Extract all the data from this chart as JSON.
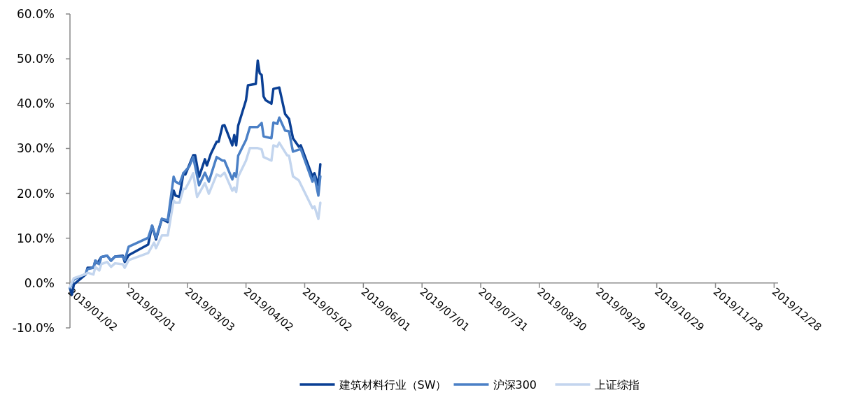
{
  "chart_data": {
    "type": "line",
    "legend": "bottom",
    "grid": false,
    "marker": "none",
    "line_style": "solid",
    "xlim": [
      "2019-01-02",
      "2019-12-30"
    ],
    "xticks": [
      {
        "value": "2019-01-02",
        "label": "2019/01/02"
      },
      {
        "value": "2019-02-01",
        "label": "2019/02/01"
      },
      {
        "value": "2019-03-03",
        "label": "2019/03/03"
      },
      {
        "value": "2019-04-02",
        "label": "2019/04/02"
      },
      {
        "value": "2019-05-02",
        "label": "2019/05/02"
      },
      {
        "value": "2019-06-01",
        "label": "2019/06/01"
      },
      {
        "value": "2019-07-01",
        "label": "2019/07/01"
      },
      {
        "value": "2019-07-31",
        "label": "2019/07/31"
      },
      {
        "value": "2019-08-30",
        "label": "2019/08/30"
      },
      {
        "value": "2019-09-29",
        "label": "2019/09/29"
      },
      {
        "value": "2019-10-29",
        "label": "2019/10/29"
      },
      {
        "value": "2019-11-28",
        "label": "2019/11/28"
      },
      {
        "value": "2019-12-28",
        "label": "2019/12/28"
      }
    ],
    "ylim": [
      -10,
      60
    ],
    "yticks": [
      {
        "value": -10,
        "label": "-10.0%"
      },
      {
        "value": 0,
        "label": "0.0%"
      },
      {
        "value": 10,
        "label": "10.0%"
      },
      {
        "value": 20,
        "label": "20.0%"
      },
      {
        "value": 30,
        "label": "30.0%"
      },
      {
        "value": 40,
        "label": "40.0%"
      },
      {
        "value": 50,
        "label": "50.0%"
      },
      {
        "value": 60,
        "label": "60.0%"
      }
    ],
    "series": [
      {
        "name": "建筑材料行业（SW）",
        "color": "#0a3f94",
        "x": [
          "2019-01-02",
          "2019-01-03",
          "2019-01-04",
          "2019-01-10",
          "2019-01-11",
          "2019-01-14",
          "2019-01-15",
          "2019-01-16",
          "2019-01-18",
          "2019-01-21",
          "2019-01-23",
          "2019-01-25",
          "2019-01-29",
          "2019-01-30",
          "2019-02-01",
          "2019-02-11",
          "2019-02-13",
          "2019-02-15",
          "2019-02-18",
          "2019-02-21",
          "2019-02-24",
          "2019-02-25",
          "2019-02-27",
          "2019-03-01",
          "2019-03-02",
          "2019-03-06",
          "2019-03-07",
          "2019-03-09",
          "2019-03-12",
          "2019-03-13",
          "2019-03-15",
          "2019-03-18",
          "2019-03-19",
          "2019-03-21",
          "2019-03-22",
          "2019-03-26",
          "2019-03-27",
          "2019-03-28",
          "2019-03-29",
          "2019-04-02",
          "2019-04-03",
          "2019-04-07",
          "2019-04-08",
          "2019-04-09",
          "2019-04-10",
          "2019-04-11",
          "2019-04-12",
          "2019-04-15",
          "2019-04-16",
          "2019-04-19",
          "2019-04-22",
          "2019-04-24",
          "2019-04-26",
          "2019-04-29",
          "2019-04-30",
          "2019-05-06",
          "2019-05-07",
          "2019-05-09",
          "2019-05-10"
        ],
        "values": [
          -1.2,
          -2.6,
          -0.3,
          1.9,
          3.4,
          3.4,
          5.0,
          4.4,
          5.8,
          6.1,
          5.0,
          5.9,
          6.1,
          4.7,
          6.2,
          8.6,
          12.8,
          9.7,
          14.3,
          13.6,
          20.6,
          19.5,
          19.2,
          24.5,
          24.2,
          28.5,
          28.5,
          23.7,
          27.6,
          26.2,
          28.8,
          31.5,
          31.5,
          35.1,
          35.2,
          30.7,
          33.0,
          30.7,
          35.1,
          40.8,
          44.1,
          44.4,
          49.6,
          46.8,
          46.4,
          41.6,
          40.8,
          40.0,
          43.3,
          43.6,
          37.7,
          36.6,
          32.3,
          30.4,
          30.7,
          23.7,
          24.5,
          21.8,
          26.5
        ]
      },
      {
        "name": "沪深300",
        "color": "#4b80c6",
        "x": [
          "2019-01-02",
          "2019-01-04",
          "2019-01-10",
          "2019-01-11",
          "2019-01-14",
          "2019-01-15",
          "2019-01-17",
          "2019-01-18",
          "2019-01-21",
          "2019-01-23",
          "2019-01-25",
          "2019-01-29",
          "2019-01-30",
          "2019-02-01",
          "2019-02-11",
          "2019-02-13",
          "2019-02-15",
          "2019-02-18",
          "2019-02-21",
          "2019-02-24",
          "2019-02-25",
          "2019-02-27",
          "2019-03-01",
          "2019-03-04",
          "2019-03-06",
          "2019-03-09",
          "2019-03-12",
          "2019-03-14",
          "2019-03-18",
          "2019-03-21",
          "2019-03-22",
          "2019-03-26",
          "2019-03-27",
          "2019-03-28",
          "2019-03-29",
          "2019-04-02",
          "2019-04-04",
          "2019-04-08",
          "2019-04-10",
          "2019-04-11",
          "2019-04-15",
          "2019-04-16",
          "2019-04-18",
          "2019-04-19",
          "2019-04-22",
          "2019-04-24",
          "2019-04-26",
          "2019-04-30",
          "2019-05-06",
          "2019-05-07",
          "2019-05-09",
          "2019-05-10"
        ],
        "values": [
          -1.1,
          0.8,
          2.0,
          3.1,
          3.4,
          5.0,
          4.2,
          5.8,
          6.1,
          5.0,
          5.9,
          5.9,
          5.1,
          8.1,
          10.1,
          12.8,
          10.1,
          14.3,
          14.0,
          23.7,
          22.6,
          22.1,
          24.5,
          26.0,
          28.1,
          21.8,
          24.6,
          22.6,
          28.1,
          27.3,
          27.3,
          23.1,
          24.5,
          23.7,
          28.4,
          31.9,
          34.8,
          34.8,
          35.7,
          32.7,
          32.3,
          35.8,
          35.5,
          36.9,
          34.0,
          33.8,
          29.3,
          29.9,
          22.6,
          23.8,
          19.5,
          23.8
        ]
      },
      {
        "name": "上证综指",
        "color": "#c3d5ee",
        "x": [
          "2019-01-02",
          "2019-01-04",
          "2019-01-10",
          "2019-01-11",
          "2019-01-14",
          "2019-01-15",
          "2019-01-17",
          "2019-01-18",
          "2019-01-21",
          "2019-01-23",
          "2019-01-25",
          "2019-01-29",
          "2019-01-30",
          "2019-02-01",
          "2019-02-11",
          "2019-02-14",
          "2019-02-15",
          "2019-02-18",
          "2019-02-21",
          "2019-02-24",
          "2019-02-25",
          "2019-02-27",
          "2019-03-01",
          "2019-03-02",
          "2019-03-04",
          "2019-03-06",
          "2019-03-08",
          "2019-03-12",
          "2019-03-14",
          "2019-03-18",
          "2019-03-20",
          "2019-03-22",
          "2019-03-26",
          "2019-03-27",
          "2019-03-28",
          "2019-03-29",
          "2019-04-02",
          "2019-04-04",
          "2019-04-08",
          "2019-04-10",
          "2019-04-11",
          "2019-04-15",
          "2019-04-16",
          "2019-04-18",
          "2019-04-19",
          "2019-04-23",
          "2019-04-24",
          "2019-04-26",
          "2019-04-29",
          "2019-05-06",
          "2019-05-07",
          "2019-05-09",
          "2019-05-10"
        ],
        "values": [
          -0.8,
          1.1,
          2.0,
          2.3,
          1.9,
          3.6,
          2.8,
          4.2,
          4.7,
          3.6,
          4.4,
          4.2,
          3.4,
          5.1,
          6.7,
          9.0,
          7.8,
          10.6,
          10.6,
          18.4,
          17.9,
          17.9,
          21.0,
          21.0,
          22.6,
          24.5,
          19.2,
          22.3,
          19.9,
          24.2,
          23.8,
          24.6,
          20.6,
          21.3,
          20.3,
          23.7,
          27.3,
          30.1,
          30.1,
          29.8,
          28.1,
          27.3,
          30.7,
          30.4,
          31.3,
          28.5,
          28.4,
          23.8,
          22.9,
          16.7,
          17.1,
          14.3,
          17.9
        ]
      }
    ]
  }
}
